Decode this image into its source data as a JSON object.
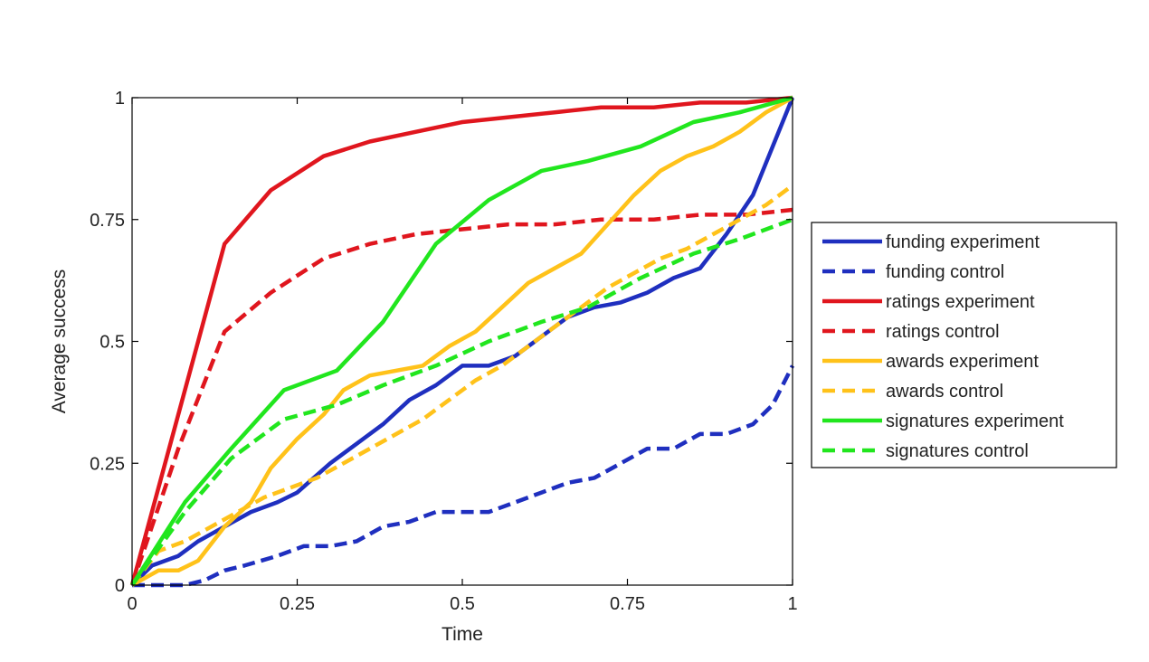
{
  "chart_data": {
    "type": "line",
    "title": "",
    "xlabel": "Time",
    "ylabel": "Average success",
    "xlim": [
      0,
      1
    ],
    "ylim": [
      0,
      1
    ],
    "xticks": [
      0,
      0.25,
      0.5,
      0.75,
      1
    ],
    "xtick_labels": [
      "0",
      "0.25",
      "0.5",
      "0.75",
      "1"
    ],
    "yticks": [
      0,
      0.25,
      0.5,
      0.75,
      1
    ],
    "ytick_labels": [
      "0",
      "0.25",
      "0.5",
      "0.75",
      "1"
    ],
    "grid": false,
    "legend_position": "outside-right",
    "series": [
      {
        "name": "funding experiment",
        "color": "#1f2fbf",
        "dash": "solid",
        "x": [
          0,
          0.03,
          0.07,
          0.1,
          0.14,
          0.18,
          0.22,
          0.25,
          0.3,
          0.34,
          0.38,
          0.42,
          0.46,
          0.5,
          0.54,
          0.58,
          0.62,
          0.66,
          0.7,
          0.74,
          0.78,
          0.82,
          0.86,
          0.9,
          0.94,
          1.0
        ],
        "y": [
          0,
          0.04,
          0.06,
          0.09,
          0.12,
          0.15,
          0.17,
          0.19,
          0.25,
          0.29,
          0.33,
          0.38,
          0.41,
          0.45,
          0.45,
          0.47,
          0.51,
          0.55,
          0.57,
          0.58,
          0.6,
          0.63,
          0.65,
          0.72,
          0.8,
          1.0
        ]
      },
      {
        "name": "funding control",
        "color": "#1f2fbf",
        "dash": "dashed",
        "x": [
          0,
          0.05,
          0.08,
          0.11,
          0.14,
          0.17,
          0.22,
          0.26,
          0.3,
          0.34,
          0.38,
          0.42,
          0.46,
          0.5,
          0.54,
          0.58,
          0.62,
          0.66,
          0.7,
          0.74,
          0.78,
          0.82,
          0.86,
          0.9,
          0.94,
          0.97,
          1.0
        ],
        "y": [
          0,
          0,
          0,
          0.01,
          0.03,
          0.04,
          0.06,
          0.08,
          0.08,
          0.09,
          0.12,
          0.13,
          0.15,
          0.15,
          0.15,
          0.17,
          0.19,
          0.21,
          0.22,
          0.25,
          0.28,
          0.28,
          0.31,
          0.31,
          0.33,
          0.37,
          0.45
        ]
      },
      {
        "name": "ratings experiment",
        "color": "#e0161e",
        "dash": "solid",
        "x": [
          0,
          0.07,
          0.14,
          0.21,
          0.29,
          0.36,
          0.43,
          0.5,
          0.57,
          0.64,
          0.71,
          0.79,
          0.86,
          0.93,
          1.0
        ],
        "y": [
          0,
          0.35,
          0.7,
          0.81,
          0.88,
          0.91,
          0.93,
          0.95,
          0.96,
          0.97,
          0.98,
          0.98,
          0.99,
          0.99,
          1.0
        ]
      },
      {
        "name": "ratings control",
        "color": "#e0161e",
        "dash": "dashed",
        "x": [
          0,
          0.07,
          0.14,
          0.21,
          0.29,
          0.36,
          0.43,
          0.5,
          0.57,
          0.64,
          0.71,
          0.79,
          0.86,
          0.93,
          1.0
        ],
        "y": [
          0,
          0.28,
          0.52,
          0.6,
          0.67,
          0.7,
          0.72,
          0.73,
          0.74,
          0.74,
          0.75,
          0.75,
          0.76,
          0.76,
          0.77
        ]
      },
      {
        "name": "awards experiment",
        "color": "#ffc21a",
        "dash": "solid",
        "x": [
          0,
          0.04,
          0.07,
          0.1,
          0.14,
          0.18,
          0.21,
          0.25,
          0.29,
          0.32,
          0.36,
          0.4,
          0.44,
          0.48,
          0.52,
          0.56,
          0.6,
          0.64,
          0.68,
          0.72,
          0.76,
          0.8,
          0.84,
          0.88,
          0.92,
          0.96,
          1.0
        ],
        "y": [
          0,
          0.03,
          0.03,
          0.05,
          0.12,
          0.17,
          0.24,
          0.3,
          0.35,
          0.4,
          0.43,
          0.44,
          0.45,
          0.49,
          0.52,
          0.57,
          0.62,
          0.65,
          0.68,
          0.74,
          0.8,
          0.85,
          0.88,
          0.9,
          0.93,
          0.97,
          1.0
        ]
      },
      {
        "name": "awards control",
        "color": "#ffc21a",
        "dash": "dashed",
        "x": [
          0,
          0.04,
          0.08,
          0.12,
          0.16,
          0.2,
          0.24,
          0.28,
          0.32,
          0.36,
          0.4,
          0.44,
          0.48,
          0.52,
          0.56,
          0.6,
          0.64,
          0.68,
          0.72,
          0.76,
          0.8,
          0.84,
          0.88,
          0.92,
          0.96,
          1.0
        ],
        "y": [
          0,
          0.07,
          0.09,
          0.12,
          0.15,
          0.18,
          0.2,
          0.22,
          0.25,
          0.28,
          0.31,
          0.34,
          0.38,
          0.42,
          0.45,
          0.49,
          0.53,
          0.57,
          0.61,
          0.64,
          0.67,
          0.69,
          0.72,
          0.75,
          0.78,
          0.82
        ]
      },
      {
        "name": "signatures experiment",
        "color": "#21e61e",
        "dash": "solid",
        "x": [
          0,
          0.08,
          0.15,
          0.23,
          0.31,
          0.38,
          0.46,
          0.54,
          0.62,
          0.69,
          0.77,
          0.85,
          0.92,
          1.0
        ],
        "y": [
          0,
          0.17,
          0.28,
          0.4,
          0.44,
          0.54,
          0.7,
          0.79,
          0.85,
          0.87,
          0.9,
          0.95,
          0.97,
          1.0
        ]
      },
      {
        "name": "signatures control",
        "color": "#21e61e",
        "dash": "dashed",
        "x": [
          0,
          0.08,
          0.15,
          0.23,
          0.31,
          0.38,
          0.46,
          0.54,
          0.62,
          0.69,
          0.77,
          0.85,
          0.92,
          1.0
        ],
        "y": [
          0,
          0.15,
          0.26,
          0.34,
          0.37,
          0.41,
          0.45,
          0.5,
          0.54,
          0.57,
          0.63,
          0.68,
          0.71,
          0.75
        ]
      }
    ]
  }
}
